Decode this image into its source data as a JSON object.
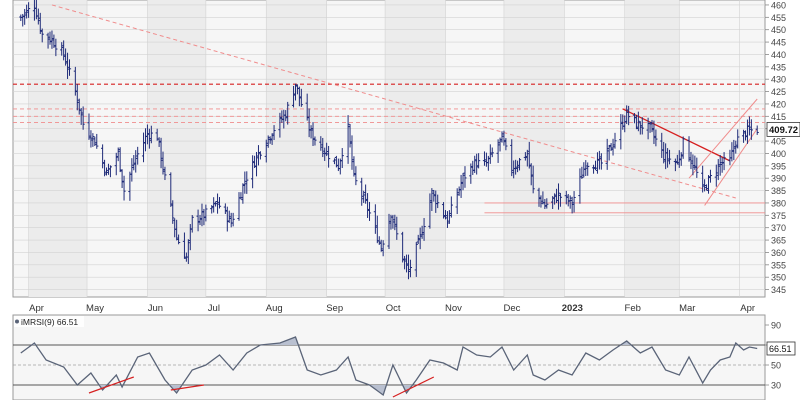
{
  "chart_data": [
    {
      "type": "ohlc",
      "x_axis_labels": [
        "Apr",
        "May",
        "Jun",
        "Jul",
        "Aug",
        "Sep",
        "Oct",
        "Nov",
        "Dec",
        "2023",
        "Feb",
        "Mar",
        "Apr"
      ],
      "y_ticks": [
        345,
        350,
        355,
        360,
        365,
        370,
        375,
        380,
        385,
        390,
        395,
        400,
        405,
        410,
        415,
        420,
        425,
        430,
        435,
        440,
        445,
        450,
        455,
        460
      ],
      "ylim": [
        342,
        462
      ],
      "last_price": "409.72",
      "price_series": [
        {
          "d": "2022-03-28",
          "c": 455
        },
        {
          "d": "2022-04-04",
          "c": 460
        },
        {
          "d": "2022-04-08",
          "c": 448
        },
        {
          "d": "2022-04-13",
          "c": 446
        },
        {
          "d": "2022-04-19",
          "c": 440
        },
        {
          "d": "2022-04-25",
          "c": 425
        },
        {
          "d": "2022-04-29",
          "c": 412
        },
        {
          "d": "2022-05-05",
          "c": 405
        },
        {
          "d": "2022-05-11",
          "c": 392
        },
        {
          "d": "2022-05-17",
          "c": 400
        },
        {
          "d": "2022-05-20",
          "c": 385
        },
        {
          "d": "2022-05-26",
          "c": 398
        },
        {
          "d": "2022-06-01",
          "c": 408
        },
        {
          "d": "2022-06-06",
          "c": 407
        },
        {
          "d": "2022-06-10",
          "c": 390
        },
        {
          "d": "2022-06-16",
          "c": 366
        },
        {
          "d": "2022-06-21",
          "c": 358
        },
        {
          "d": "2022-06-24",
          "c": 373
        },
        {
          "d": "2022-06-30",
          "c": 375
        },
        {
          "d": "2022-07-07",
          "c": 380
        },
        {
          "d": "2022-07-14",
          "c": 372
        },
        {
          "d": "2022-07-21",
          "c": 389
        },
        {
          "d": "2022-07-28",
          "c": 400
        },
        {
          "d": "2022-08-05",
          "c": 410
        },
        {
          "d": "2022-08-11",
          "c": 416
        },
        {
          "d": "2022-08-16",
          "c": 428
        },
        {
          "d": "2022-08-19",
          "c": 420
        },
        {
          "d": "2022-08-24",
          "c": 408
        },
        {
          "d": "2022-08-30",
          "c": 402
        },
        {
          "d": "2022-09-07",
          "c": 395
        },
        {
          "d": "2022-09-12",
          "c": 410
        },
        {
          "d": "2022-09-15",
          "c": 390
        },
        {
          "d": "2022-09-22",
          "c": 378
        },
        {
          "d": "2022-09-29",
          "c": 362
        },
        {
          "d": "2022-10-04",
          "c": 376
        },
        {
          "d": "2022-10-10",
          "c": 358
        },
        {
          "d": "2022-10-13",
          "c": 352
        },
        {
          "d": "2022-10-19",
          "c": 366
        },
        {
          "d": "2022-10-25",
          "c": 384
        },
        {
          "d": "2022-11-02",
          "c": 373
        },
        {
          "d": "2022-11-10",
          "c": 390
        },
        {
          "d": "2022-11-16",
          "c": 396
        },
        {
          "d": "2022-11-22",
          "c": 396
        },
        {
          "d": "2022-11-30",
          "c": 406
        },
        {
          "d": "2022-12-05",
          "c": 394
        },
        {
          "d": "2022-12-13",
          "c": 400
        },
        {
          "d": "2022-12-16",
          "c": 385
        },
        {
          "d": "2022-12-22",
          "c": 379
        },
        {
          "d": "2022-12-29",
          "c": 383
        },
        {
          "d": "2023-01-05",
          "c": 380
        },
        {
          "d": "2023-01-12",
          "c": 396
        },
        {
          "d": "2023-01-20",
          "c": 396
        },
        {
          "d": "2023-01-26",
          "c": 404
        },
        {
          "d": "2023-02-02",
          "c": 416
        },
        {
          "d": "2023-02-07",
          "c": 412
        },
        {
          "d": "2023-02-14",
          "c": 410
        },
        {
          "d": "2023-02-21",
          "c": 399
        },
        {
          "d": "2023-02-28",
          "c": 396
        },
        {
          "d": "2023-03-03",
          "c": 404
        },
        {
          "d": "2023-03-09",
          "c": 394
        },
        {
          "d": "2023-03-13",
          "c": 385
        },
        {
          "d": "2023-03-17",
          "c": 390
        },
        {
          "d": "2023-03-22",
          "c": 396
        },
        {
          "d": "2023-03-27",
          "c": 397
        },
        {
          "d": "2023-03-30",
          "c": 405
        },
        {
          "d": "2023-04-05",
          "c": 409
        },
        {
          "d": "2023-04-10",
          "c": 409.72
        }
      ],
      "reference_lines": [
        {
          "type": "horizontal",
          "y": 428,
          "style": "dashed",
          "color": "#d62020"
        },
        {
          "type": "horizontal",
          "y": 418,
          "style": "dashed",
          "color": "#f08c8c"
        },
        {
          "type": "horizontal",
          "y": 415,
          "style": "dashed",
          "color": "#f08c8c"
        },
        {
          "type": "horizontal",
          "y": 412.5,
          "style": "dashed",
          "color": "#f08c8c"
        },
        {
          "type": "horizontal",
          "y": 380,
          "style": "solid",
          "color": "#f08c8c",
          "from": "2022-11-21"
        },
        {
          "type": "horizontal",
          "y": 376,
          "style": "solid",
          "color": "#f08c8c",
          "from": "2022-11-21"
        },
        {
          "type": "trend",
          "from": {
            "d": "2022-04-13",
            "v": 460
          },
          "to": {
            "d": "2023-03-30",
            "v": 382
          },
          "style": "dashed",
          "color": "#f08c8c"
        },
        {
          "type": "trend",
          "from": {
            "d": "2023-01-31",
            "v": 418
          },
          "to": {
            "d": "2023-03-27",
            "v": 397
          },
          "style": "solid",
          "color": "#d62020"
        },
        {
          "type": "trend",
          "from": {
            "d": "2023-03-06",
            "v": 390
          },
          "to": {
            "d": "2023-04-10",
            "v": 422
          },
          "style": "solid",
          "color": "#f08c8c"
        },
        {
          "type": "trend",
          "from": {
            "d": "2023-03-14",
            "v": 379
          },
          "to": {
            "d": "2023-04-10",
            "v": 410
          },
          "style": "solid",
          "color": "#f08c8c"
        }
      ],
      "colors": {
        "bars": "#1e2a78",
        "grid": "#d2d2d2",
        "shade": "#ececec",
        "trend": "#d62020",
        "trend_light": "#f08c8c"
      }
    },
    {
      "type": "line",
      "label": "iMRSI(9) 66.51",
      "last_value": "66.51",
      "y_ticks": [
        90,
        70,
        50,
        30
      ],
      "ylim": [
        15,
        100
      ],
      "levels": [
        70,
        50,
        30
      ],
      "rsi_series": [
        {
          "d": "2022-03-28",
          "v": 62
        },
        {
          "d": "2022-04-04",
          "v": 72
        },
        {
          "d": "2022-04-10",
          "v": 55
        },
        {
          "d": "2022-04-19",
          "v": 48
        },
        {
          "d": "2022-04-26",
          "v": 30
        },
        {
          "d": "2022-05-03",
          "v": 42
        },
        {
          "d": "2022-05-09",
          "v": 25
        },
        {
          "d": "2022-05-16",
          "v": 40
        },
        {
          "d": "2022-05-19",
          "v": 28
        },
        {
          "d": "2022-05-27",
          "v": 58
        },
        {
          "d": "2022-06-02",
          "v": 62
        },
        {
          "d": "2022-06-10",
          "v": 35
        },
        {
          "d": "2022-06-16",
          "v": 22
        },
        {
          "d": "2022-06-24",
          "v": 45
        },
        {
          "d": "2022-07-01",
          "v": 50
        },
        {
          "d": "2022-07-08",
          "v": 60
        },
        {
          "d": "2022-07-15",
          "v": 45
        },
        {
          "d": "2022-07-22",
          "v": 62
        },
        {
          "d": "2022-07-29",
          "v": 70
        },
        {
          "d": "2022-08-08",
          "v": 72
        },
        {
          "d": "2022-08-16",
          "v": 78
        },
        {
          "d": "2022-08-22",
          "v": 45
        },
        {
          "d": "2022-08-29",
          "v": 40
        },
        {
          "d": "2022-09-06",
          "v": 45
        },
        {
          "d": "2022-09-12",
          "v": 58
        },
        {
          "d": "2022-09-16",
          "v": 35
        },
        {
          "d": "2022-09-23",
          "v": 30
        },
        {
          "d": "2022-09-30",
          "v": 20
        },
        {
          "d": "2022-10-05",
          "v": 50
        },
        {
          "d": "2022-10-12",
          "v": 22
        },
        {
          "d": "2022-10-17",
          "v": 35
        },
        {
          "d": "2022-10-24",
          "v": 55
        },
        {
          "d": "2022-10-31",
          "v": 52
        },
        {
          "d": "2022-11-07",
          "v": 45
        },
        {
          "d": "2022-11-10",
          "v": 68
        },
        {
          "d": "2022-11-17",
          "v": 60
        },
        {
          "d": "2022-11-24",
          "v": 58
        },
        {
          "d": "2022-11-30",
          "v": 68
        },
        {
          "d": "2022-12-06",
          "v": 45
        },
        {
          "d": "2022-12-13",
          "v": 60
        },
        {
          "d": "2022-12-16",
          "v": 40
        },
        {
          "d": "2022-12-22",
          "v": 35
        },
        {
          "d": "2022-12-29",
          "v": 45
        },
        {
          "d": "2023-01-05",
          "v": 40
        },
        {
          "d": "2023-01-12",
          "v": 62
        },
        {
          "d": "2023-01-19",
          "v": 55
        },
        {
          "d": "2023-01-26",
          "v": 65
        },
        {
          "d": "2023-02-02",
          "v": 74
        },
        {
          "d": "2023-02-09",
          "v": 62
        },
        {
          "d": "2023-02-15",
          "v": 68
        },
        {
          "d": "2023-02-22",
          "v": 45
        },
        {
          "d": "2023-03-01",
          "v": 40
        },
        {
          "d": "2023-03-06",
          "v": 58
        },
        {
          "d": "2023-03-13",
          "v": 32
        },
        {
          "d": "2023-03-17",
          "v": 45
        },
        {
          "d": "2023-03-22",
          "v": 55
        },
        {
          "d": "2023-03-27",
          "v": 58
        },
        {
          "d": "2023-03-30",
          "v": 72
        },
        {
          "d": "2023-04-03",
          "v": 65
        },
        {
          "d": "2023-04-06",
          "v": 68
        },
        {
          "d": "2023-04-10",
          "v": 66.51
        }
      ],
      "divergence_lines": [
        {
          "from": {
            "d": "2022-05-02",
            "v": 22
          },
          "to": {
            "d": "2022-05-25",
            "v": 38
          }
        },
        {
          "from": {
            "d": "2022-06-13",
            "v": 25
          },
          "to": {
            "d": "2022-06-30",
            "v": 30
          }
        },
        {
          "from": {
            "d": "2022-10-05",
            "v": 18
          },
          "to": {
            "d": "2022-10-26",
            "v": 38
          }
        }
      ],
      "colors": {
        "line": "#5a6478",
        "fill": "#b9c0d0",
        "levels": "#d2d2d2",
        "divergence": "#d62020"
      }
    }
  ]
}
